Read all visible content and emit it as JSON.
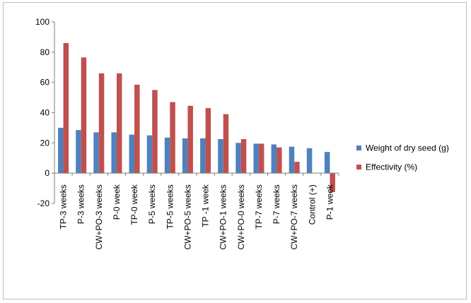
{
  "chart_data": {
    "type": "bar",
    "title": "",
    "xlabel": "",
    "ylabel": "",
    "ylim": [
      -20,
      100
    ],
    "yticks": [
      -20,
      0,
      20,
      40,
      60,
      80,
      100
    ],
    "grid": false,
    "legend_position": "right",
    "categories": [
      "TP-3 weeks",
      "P-3 weeks",
      "CW+PO-3 weeks",
      "P-0 week",
      "TP-0 week",
      "P-5 weeks",
      "TP-5 weeks",
      "CW+PO-5 weeks",
      "TP -1 week",
      "CW+PO-1 weeks",
      "CW+PO-0 weeks",
      "TP-7 weeks",
      "P-7 weeks",
      "CW+PO-7 weeks",
      "Control (+)",
      "P-1 week"
    ],
    "series": [
      {
        "name": "Weight of dry seed (g)",
        "color": "#4f81bd",
        "values": [
          30,
          28.5,
          27,
          27,
          25.5,
          25,
          23.5,
          23,
          23,
          22.5,
          20,
          19.5,
          19,
          17.5,
          16.5,
          14
        ]
      },
      {
        "name": "Effectivity (%)",
        "color": "#c0504d",
        "values": [
          86,
          76.5,
          66,
          66,
          58.5,
          55,
          47,
          44.5,
          43,
          39,
          22.5,
          19.5,
          17,
          7.5,
          0,
          -12.5
        ]
      }
    ]
  }
}
